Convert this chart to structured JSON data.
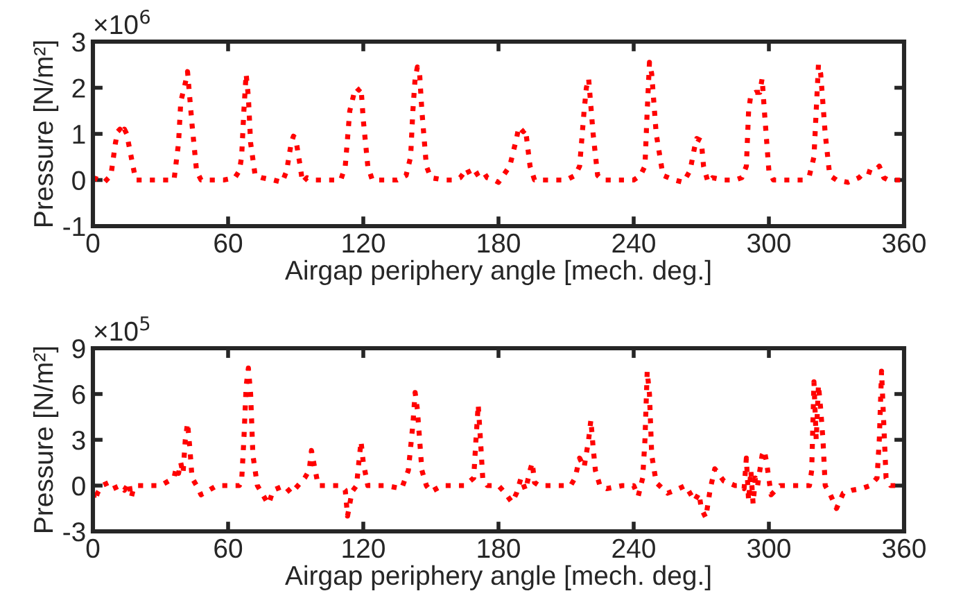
{
  "chart_data": [
    {
      "type": "line",
      "xlabel": "Airgap periphery angle [mech. deg.]",
      "ylabel": "Pressure [N/m²]",
      "annotations": [
        "×10$^{6}$"
      ],
      "xlim": [
        0,
        360
      ],
      "xticks": [
        0,
        60,
        120,
        180,
        240,
        300,
        360
      ],
      "ylim": [
        -1,
        3
      ],
      "yticks": [
        -1,
        0,
        1,
        2,
        3
      ],
      "grid": false,
      "legend": false,
      "marker": "none",
      "line_style": "dotted",
      "series": [
        {
          "color": "#ff0000",
          "x": [
            0,
            3,
            5,
            8,
            10,
            11,
            12,
            13,
            14,
            15,
            17,
            19,
            30,
            36,
            38,
            39,
            41,
            42,
            44,
            46,
            48,
            58,
            63,
            65,
            66,
            67,
            68,
            69,
            70,
            72,
            75,
            80,
            84,
            86,
            88,
            89,
            90,
            92,
            93,
            95,
            98,
            105,
            110,
            112,
            114,
            116,
            117,
            118,
            119,
            120,
            122,
            124,
            135,
            139,
            141,
            142,
            143,
            144,
            145,
            146,
            148,
            150,
            156,
            160,
            163,
            166,
            168,
            171,
            173,
            175,
            178,
            180,
            185,
            188,
            189,
            191,
            192,
            194,
            196,
            198,
            205,
            210,
            214,
            216,
            218,
            219,
            220,
            222,
            224,
            226,
            235,
            240,
            243,
            245,
            246,
            247,
            248,
            250,
            253,
            258,
            262,
            265,
            267,
            268,
            270,
            271,
            273,
            275,
            280,
            285,
            288,
            290,
            291,
            292,
            294,
            296,
            297,
            298,
            300,
            302,
            304,
            315,
            318,
            320,
            321,
            322,
            323,
            325,
            327,
            330,
            335,
            340,
            343,
            346,
            349,
            351,
            353,
            356,
            360
          ],
          "values": [
            0.05,
            0,
            -0.05,
            0.1,
            0.8,
            1.05,
            1.1,
            1,
            1.1,
            1,
            0.5,
            0,
            0,
            0,
            0.8,
            1.7,
            2.1,
            2.35,
            1.2,
            0.2,
            0,
            0,
            0.05,
            0.2,
            0.5,
            1.5,
            2.3,
            1.8,
            0.8,
            0.1,
            0.05,
            0,
            -0.05,
            0.2,
            0.8,
            0.95,
            0.9,
            0.3,
            -0.05,
            0.05,
            0,
            0,
            0,
            0.3,
            1.5,
            1.9,
            2,
            1.95,
            2,
            1.3,
            0.3,
            0,
            0,
            0.1,
            0.5,
            1.5,
            2.2,
            2.45,
            2.3,
            1.5,
            0.3,
            0.05,
            0,
            0,
            0.05,
            0.25,
            0.05,
            0.15,
            0.2,
            0.05,
            0,
            -0.05,
            0.3,
            0.9,
            1.15,
            1.05,
            1.1,
            0.3,
            0,
            0,
            0,
            0,
            0.1,
            0.3,
            1.5,
            2,
            2.2,
            1,
            0.1,
            0,
            0,
            0,
            0.1,
            0.3,
            1.5,
            2.55,
            2.3,
            1,
            0.1,
            0,
            -0.05,
            0.2,
            0.7,
            0.9,
            0.85,
            0.3,
            -0.05,
            0.05,
            0,
            0,
            0.05,
            0.3,
            1.5,
            1.85,
            1.9,
            1.9,
            2.2,
            1.5,
            0.2,
            0,
            0,
            0,
            0.1,
            0.5,
            1.5,
            2.5,
            2.3,
            1,
            0.1,
            0,
            -0.05,
            0.05,
            0.2,
            0.15,
            0.3,
            0.05,
            0,
            0,
            0
          ]
        }
      ]
    },
    {
      "type": "line",
      "xlabel": "Airgap periphery angle [mech. deg.]",
      "ylabel": "Pressure [N/m²]",
      "annotations": [
        "×10$^{5}$"
      ],
      "xlim": [
        0,
        360
      ],
      "xticks": [
        0,
        60,
        120,
        180,
        240,
        300,
        360
      ],
      "ylim": [
        -3,
        9
      ],
      "yticks": [
        -3,
        0,
        3,
        6,
        9
      ],
      "grid": false,
      "legend": false,
      "marker": "none",
      "line_style": "dotted",
      "series": [
        {
          "color": "#ff0000",
          "x": [
            0,
            1,
            2,
            4,
            7,
            9,
            12,
            14,
            16,
            17,
            18,
            20,
            30,
            36,
            37,
            38,
            39,
            40,
            41,
            42,
            43,
            44,
            46,
            48,
            55,
            62,
            65,
            66,
            67,
            68,
            69,
            70,
            71,
            73,
            77,
            78,
            80,
            85,
            88,
            91,
            94,
            96,
            97,
            98,
            100,
            105,
            110,
            112,
            113,
            115,
            117,
            118,
            119,
            120,
            122,
            125,
            130,
            137,
            140,
            141,
            142,
            143,
            144,
            145,
            146,
            148,
            150,
            155,
            160,
            165,
            169,
            170,
            171,
            172,
            173,
            175,
            180,
            183,
            186,
            188,
            190,
            192,
            194,
            195,
            196,
            198,
            205,
            212,
            214,
            216,
            218,
            220,
            221,
            222,
            223,
            225,
            228,
            235,
            240,
            242,
            244,
            245,
            246,
            247,
            248,
            250,
            255,
            260,
            263,
            265,
            267,
            269,
            270,
            272,
            274,
            276,
            280,
            285,
            288,
            289,
            290,
            291,
            292,
            293,
            294,
            295,
            297,
            298,
            299,
            301,
            305,
            310,
            316,
            318,
            319,
            320,
            321,
            322,
            323,
            324,
            325,
            327,
            330,
            333,
            337,
            341,
            345,
            348,
            349,
            350,
            351,
            352,
            354,
            356,
            360
          ],
          "values": [
            -0.5,
            -1,
            -0.5,
            0,
            0.2,
            -0.2,
            0,
            -0.3,
            0.2,
            -0.8,
            -0.2,
            0,
            0,
            0.5,
            1.2,
            0.8,
            1.5,
            0.8,
            3,
            4.1,
            2.5,
            0.5,
            0,
            -0.6,
            0,
            0,
            0,
            0.3,
            3,
            6.5,
            7.7,
            6,
            2,
            0,
            -1,
            -1.2,
            -0.3,
            0,
            -0.5,
            0,
            0.5,
            1,
            2.3,
            1.5,
            0,
            0,
            0,
            -0.3,
            -2,
            -0.4,
            0,
            1.5,
            2.9,
            1.5,
            0,
            0,
            0,
            -0.2,
            1,
            2.5,
            4,
            6.1,
            5,
            3,
            1,
            0,
            -0.4,
            0,
            0,
            0,
            0.5,
            3,
            5.3,
            3,
            0.5,
            0,
            0,
            -0.5,
            -1.1,
            -0.5,
            0.5,
            -0.3,
            1,
            1.5,
            0.2,
            0,
            0,
            0,
            0.5,
            1.8,
            1.2,
            3,
            4.3,
            2.5,
            1,
            0,
            -0.2,
            0,
            0,
            -0.7,
            0.5,
            3,
            7.5,
            6,
            2,
            0.2,
            -0.5,
            -0.2,
            0,
            -0.5,
            -1,
            -0.5,
            -1.5,
            -2.1,
            -0.2,
            1.1,
            0.3,
            0,
            0,
            -0.2,
            1.8,
            -1,
            1,
            -1.2,
            0.5,
            0,
            2,
            2.3,
            1.5,
            -0.6,
            0,
            0,
            0,
            0,
            1,
            6.8,
            3,
            6.6,
            5,
            3,
            0,
            -0.5,
            -1.5,
            -0.5,
            -0.3,
            -0.2,
            0,
            0.5,
            3,
            7.5,
            4,
            0.5,
            0,
            0,
            0
          ]
        }
      ]
    }
  ]
}
